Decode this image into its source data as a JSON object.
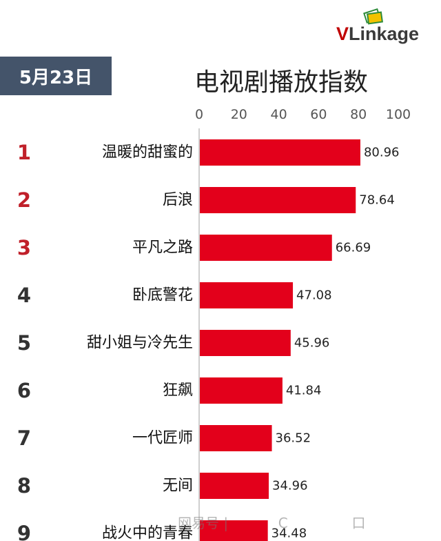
{
  "header": {
    "date": "5月23日",
    "logo": {
      "v": "V",
      "rest": "Linkage"
    },
    "watermark": "网易号 | 　　　 C 　　　　 口"
  },
  "chart_data": {
    "type": "bar",
    "orientation": "horizontal",
    "title": "电视剧播放指数",
    "xlim": [
      0,
      100
    ],
    "xticks": [
      0,
      20,
      40,
      60,
      80,
      100
    ],
    "xtick_labels": [
      "0",
      "20",
      "40",
      "60",
      "80",
      "100"
    ],
    "ranks": [
      "1",
      "2",
      "3",
      "4",
      "5",
      "6",
      "7",
      "8",
      "9"
    ],
    "categories": [
      "温暖的甜蜜的",
      "后浪",
      "平凡之路",
      "卧底警花",
      "甜小姐与冷先生",
      "狂飙",
      "一代匠师",
      "无间",
      "战火中的青春"
    ],
    "values": [
      80.96,
      78.64,
      66.69,
      47.08,
      45.96,
      41.84,
      36.52,
      34.96,
      34.48
    ],
    "value_labels": [
      "80.96",
      "78.64",
      "66.69",
      "47.08",
      "45.96",
      "41.84",
      "36.52",
      "34.96",
      "34.48"
    ],
    "bar_color": "#e3001b",
    "top_rank_color": "#c0202a",
    "rank_color": "#333333"
  }
}
